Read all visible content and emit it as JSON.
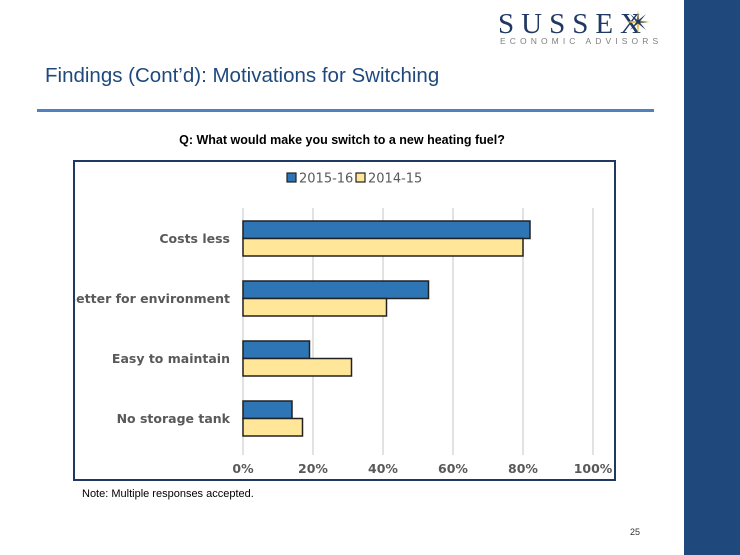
{
  "logo": {
    "name": "SUSSEX",
    "subtitle": "ECONOMIC ADVISORS"
  },
  "header": {
    "title": "Findings (Cont’d): Motivations for Switching"
  },
  "question": "Q: What would make you switch to a new heating fuel?",
  "note": "Note: Multiple responses accepted.",
  "page_number": "25",
  "colors": {
    "sidebar": "#1f497d",
    "rule": "#4f81bd",
    "series_2015_16": "#2e75b6",
    "series_2014_15": "#ffe699"
  },
  "chart_data": {
    "type": "bar",
    "orientation": "horizontal",
    "title": "",
    "xlabel": "",
    "ylabel": "",
    "categories": [
      "Costs less",
      "Better for environment",
      "Easy to maintain",
      "No storage tank"
    ],
    "series": [
      {
        "name": "2015-16",
        "color": "#2e75b6",
        "values": [
          82,
          53,
          19,
          14
        ]
      },
      {
        "name": "2014-15",
        "color": "#ffe699",
        "values": [
          80,
          41,
          31,
          17
        ]
      }
    ],
    "xlim": [
      0,
      100
    ],
    "x_ticks": [
      0,
      20,
      40,
      60,
      80,
      100
    ],
    "x_tick_labels": [
      "0%",
      "20%",
      "40%",
      "60%",
      "80%",
      "100%"
    ],
    "grid": true,
    "legend_position": "top"
  }
}
